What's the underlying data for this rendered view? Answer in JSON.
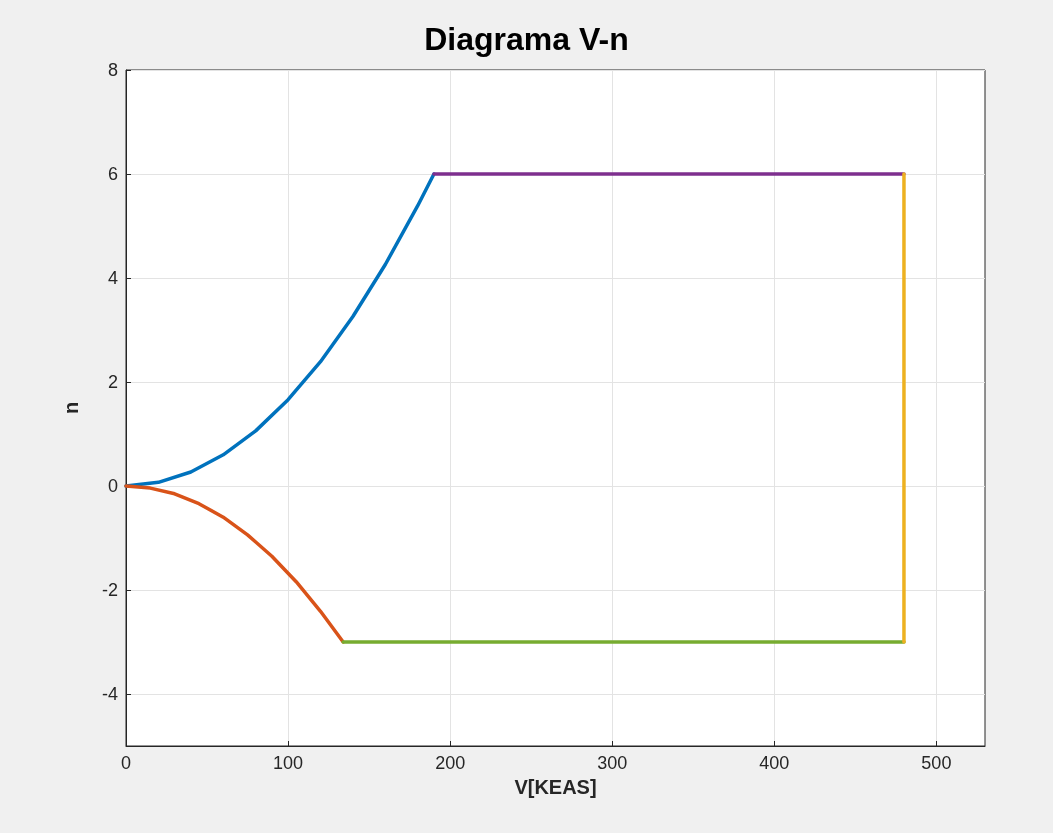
{
  "chart_data": {
    "type": "line",
    "title": "Diagrama V-n",
    "xlabel": "V[KEAS]",
    "ylabel": "n",
    "xlim": [
      0,
      530
    ],
    "ylim": [
      -5,
      8
    ],
    "xticks": [
      0,
      100,
      200,
      300,
      400,
      500
    ],
    "yticks": [
      -4,
      -2,
      0,
      2,
      4,
      6,
      8
    ],
    "grid": true,
    "series": [
      {
        "color": "#0072bd",
        "x": [
          0,
          20,
          40,
          60,
          80,
          100,
          120,
          140,
          160,
          180,
          190
        ],
        "values": [
          0,
          0.07,
          0.27,
          0.6,
          1.06,
          1.66,
          2.39,
          3.26,
          4.26,
          5.39,
          6
        ]
      },
      {
        "color": "#d95319",
        "x": [
          0,
          15,
          30,
          45,
          60,
          75,
          90,
          105,
          120,
          134
        ],
        "values": [
          0,
          -0.04,
          -0.15,
          -0.34,
          -0.6,
          -0.94,
          -1.35,
          -1.84,
          -2.41,
          -3
        ]
      },
      {
        "color": "#7e2f8e",
        "x": [
          190,
          480
        ],
        "values": [
          6,
          6
        ]
      },
      {
        "color": "#77ac30",
        "x": [
          134,
          480
        ],
        "values": [
          -3,
          -3
        ]
      },
      {
        "color": "#edb120",
        "x": [
          480,
          480
        ],
        "values": [
          -3,
          6
        ]
      }
    ]
  }
}
